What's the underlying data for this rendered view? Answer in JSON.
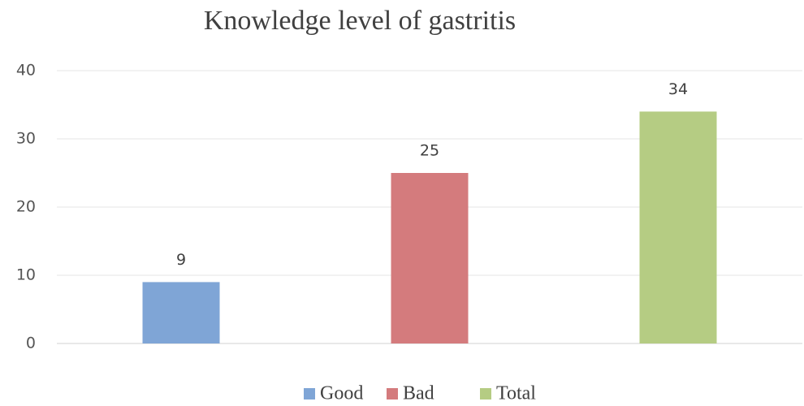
{
  "chart_data": {
    "type": "bar",
    "title": "Knowledge level of gastritis",
    "categories": [
      null
    ],
    "series": [
      {
        "name": "Good",
        "color": "#7fa5d6",
        "values": [
          9
        ]
      },
      {
        "name": "Bad",
        "color": "#d47b7d",
        "values": [
          25
        ]
      },
      {
        "name": "Total",
        "color": "#b5cc83",
        "values": [
          34
        ]
      }
    ],
    "ylim": [
      0,
      40
    ],
    "yticks": [
      0,
      10,
      20,
      30,
      40
    ],
    "grid": true,
    "legend": "bottom"
  }
}
